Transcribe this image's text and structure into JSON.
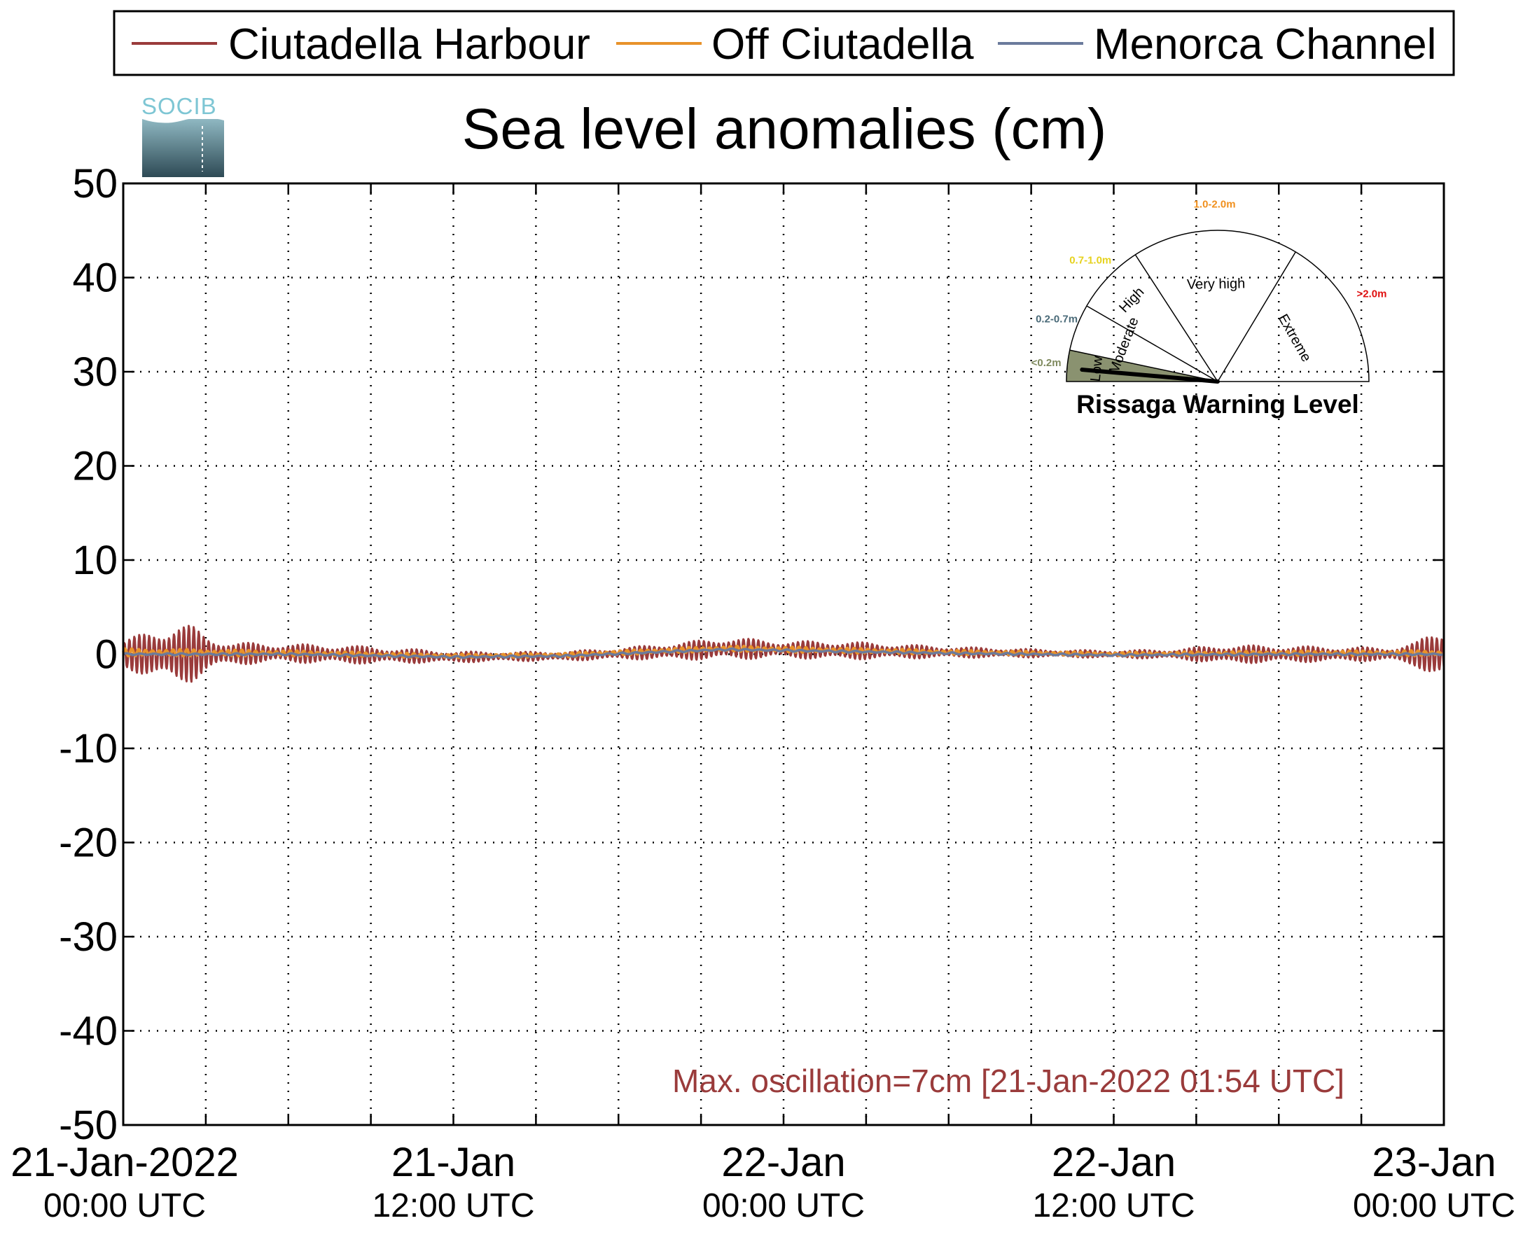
{
  "legend": {
    "items": [
      {
        "label": "Ciutadella Harbour",
        "color": "#9a3b3b"
      },
      {
        "label": "Off Ciutadella",
        "color": "#e8922a"
      },
      {
        "label": "Menorca Channel",
        "color": "#6b7b9c"
      }
    ]
  },
  "logo": {
    "text": "SOCIB"
  },
  "annotation": {
    "text": "Max. oscillation=7cm [21-Jan-2022 01:54 UTC]",
    "color": "#9a3b3b"
  },
  "gauge": {
    "title": "Rissaga Warning Level",
    "current_level": "Low",
    "segments": [
      {
        "label": "Low",
        "range": "<0.2m",
        "range_color": "#7f8a5e",
        "fill": "#8a9270"
      },
      {
        "label": "Moderate",
        "range": "0.2-0.7m",
        "range_color": "#4a6a78",
        "fill": "#ffffff"
      },
      {
        "label": "High",
        "range": "0.7-1.0m",
        "range_color": "#e6d21e",
        "fill": "#ffffff"
      },
      {
        "label": "Very high",
        "range": "1.0-2.0m",
        "range_color": "#f0901e",
        "fill": "#ffffff"
      },
      {
        "label": "Extreme",
        "range": ">2.0m",
        "range_color": "#e01010",
        "fill": "#ffffff"
      }
    ]
  },
  "chart_data": {
    "type": "line",
    "title": "Sea level anomalies (cm)",
    "xlabel": "",
    "ylabel": "",
    "ylim": [
      -50,
      50
    ],
    "yticks": [
      50,
      40,
      30,
      20,
      10,
      0,
      -10,
      -20,
      -30,
      -40,
      -50
    ],
    "ytick_labels": [
      "50",
      "40",
      "30",
      "20",
      "10",
      "0",
      "-10",
      "-20",
      "-30",
      "-40",
      "-50"
    ],
    "xlim_hours": [
      0,
      48
    ],
    "x_tick_labels": [
      {
        "hour": 0,
        "date": "21-Jan-2022",
        "time": "00:00 UTC"
      },
      {
        "hour": 12,
        "date": "21-Jan",
        "time": "12:00 UTC"
      },
      {
        "hour": 24,
        "date": "22-Jan",
        "time": "00:00 UTC"
      },
      {
        "hour": 36,
        "date": "22-Jan",
        "time": "12:00 UTC"
      },
      {
        "hour": 48,
        "date": "23-Jan",
        "time": "00:00 UTC"
      }
    ],
    "grid": true,
    "legend_position": "top",
    "series": [
      {
        "name": "Ciutadella Harbour",
        "color": "#9a3b3b",
        "oscillation_envelope_cm": [
          [
            0,
            1.5
          ],
          [
            1,
            2.5
          ],
          [
            1.9,
            3.5
          ],
          [
            2.5,
            3.0
          ],
          [
            3,
            2.0
          ],
          [
            4,
            1.2
          ],
          [
            6,
            1.0
          ],
          [
            8,
            1.0
          ],
          [
            10,
            0.8
          ],
          [
            12,
            0.6
          ],
          [
            14,
            0.5
          ],
          [
            16,
            0.5
          ],
          [
            18,
            0.6
          ],
          [
            20,
            0.9
          ],
          [
            22,
            1.2
          ],
          [
            24,
            0.9
          ],
          [
            26,
            1.0
          ],
          [
            28,
            0.8
          ],
          [
            30,
            0.6
          ],
          [
            32,
            0.5
          ],
          [
            34,
            0.4
          ],
          [
            36,
            0.4
          ],
          [
            38,
            0.5
          ],
          [
            40,
            1.0
          ],
          [
            42,
            0.9
          ],
          [
            44,
            0.8
          ],
          [
            46,
            0.7
          ],
          [
            47,
            1.3
          ],
          [
            48,
            3.0
          ]
        ],
        "mean_cm": [
          [
            0,
            0.0
          ],
          [
            6,
            0.1
          ],
          [
            12,
            -0.3
          ],
          [
            16,
            -0.2
          ],
          [
            20,
            0.3
          ],
          [
            22,
            0.6
          ],
          [
            24,
            0.5
          ],
          [
            30,
            0.2
          ],
          [
            36,
            0.0
          ],
          [
            42,
            0.0
          ],
          [
            48,
            0.0
          ]
        ]
      },
      {
        "name": "Off Ciutadella",
        "color": "#e8922a",
        "oscillation_envelope_cm": [
          [
            0,
            0.4
          ],
          [
            12,
            0.2
          ],
          [
            24,
            0.3
          ],
          [
            36,
            0.2
          ],
          [
            48,
            0.3
          ]
        ],
        "mean_cm": [
          [
            0,
            0.2
          ],
          [
            6,
            0.1
          ],
          [
            12,
            -0.2
          ],
          [
            16,
            -0.1
          ],
          [
            20,
            0.4
          ],
          [
            22,
            0.6
          ],
          [
            24,
            0.5
          ],
          [
            30,
            0.2
          ],
          [
            36,
            0.0
          ],
          [
            42,
            0.1
          ],
          [
            48,
            0.1
          ]
        ]
      },
      {
        "name": "Menorca Channel",
        "color": "#6b7b9c",
        "oscillation_envelope_cm": [
          [
            0,
            0.1
          ],
          [
            48,
            0.1
          ]
        ],
        "mean_cm": [
          [
            0,
            0.0
          ],
          [
            6,
            0.0
          ],
          [
            12,
            -0.3
          ],
          [
            16,
            -0.2
          ],
          [
            20,
            0.3
          ],
          [
            22,
            0.5
          ],
          [
            24,
            0.4
          ],
          [
            30,
            0.1
          ],
          [
            36,
            -0.1
          ],
          [
            42,
            0.0
          ],
          [
            48,
            0.0
          ]
        ]
      }
    ]
  }
}
